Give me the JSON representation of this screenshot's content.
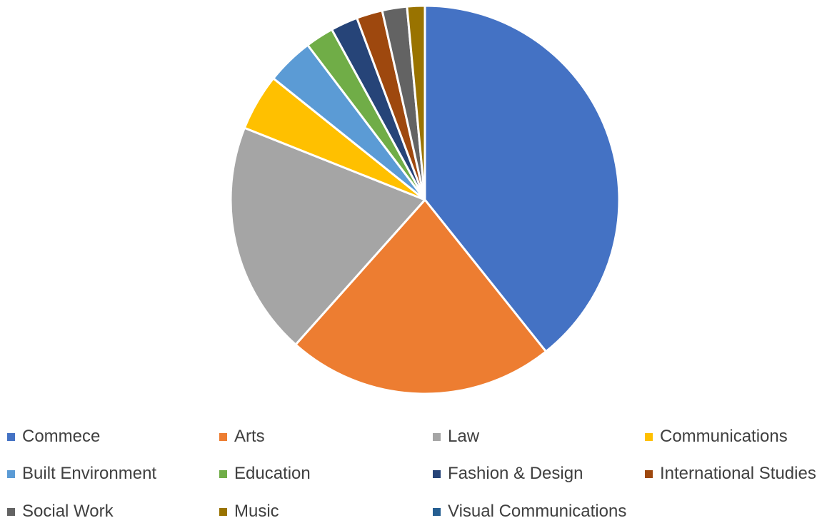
{
  "chart_data": {
    "type": "pie",
    "title": "",
    "slices": [
      {
        "label": "Commece",
        "value": 40.0,
        "color": "#4472C4"
      },
      {
        "label": "Arts",
        "value": 22.7,
        "color": "#ED7D31"
      },
      {
        "label": "Law",
        "value": 19.8,
        "color": "#A5A5A5"
      },
      {
        "label": "Communications",
        "value": 4.8,
        "color": "#FFC000"
      },
      {
        "label": "Built Environment",
        "value": 4.0,
        "color": "#5B9BD5"
      },
      {
        "label": "Education",
        "value": 2.4,
        "color": "#70AD47"
      },
      {
        "label": "Fashion & Design",
        "value": 2.3,
        "color": "#264478"
      },
      {
        "label": "International Studies",
        "value": 2.2,
        "color": "#9E480E"
      },
      {
        "label": "Social Work",
        "value": 2.1,
        "color": "#636363"
      },
      {
        "label": "Music",
        "value": 1.5,
        "color": "#997300"
      },
      {
        "label": "Visual Communications",
        "value": 0.0,
        "color": "#255E91"
      }
    ],
    "legend_position": "bottom",
    "start_angle_deg": 0,
    "direction": "clockwise"
  }
}
